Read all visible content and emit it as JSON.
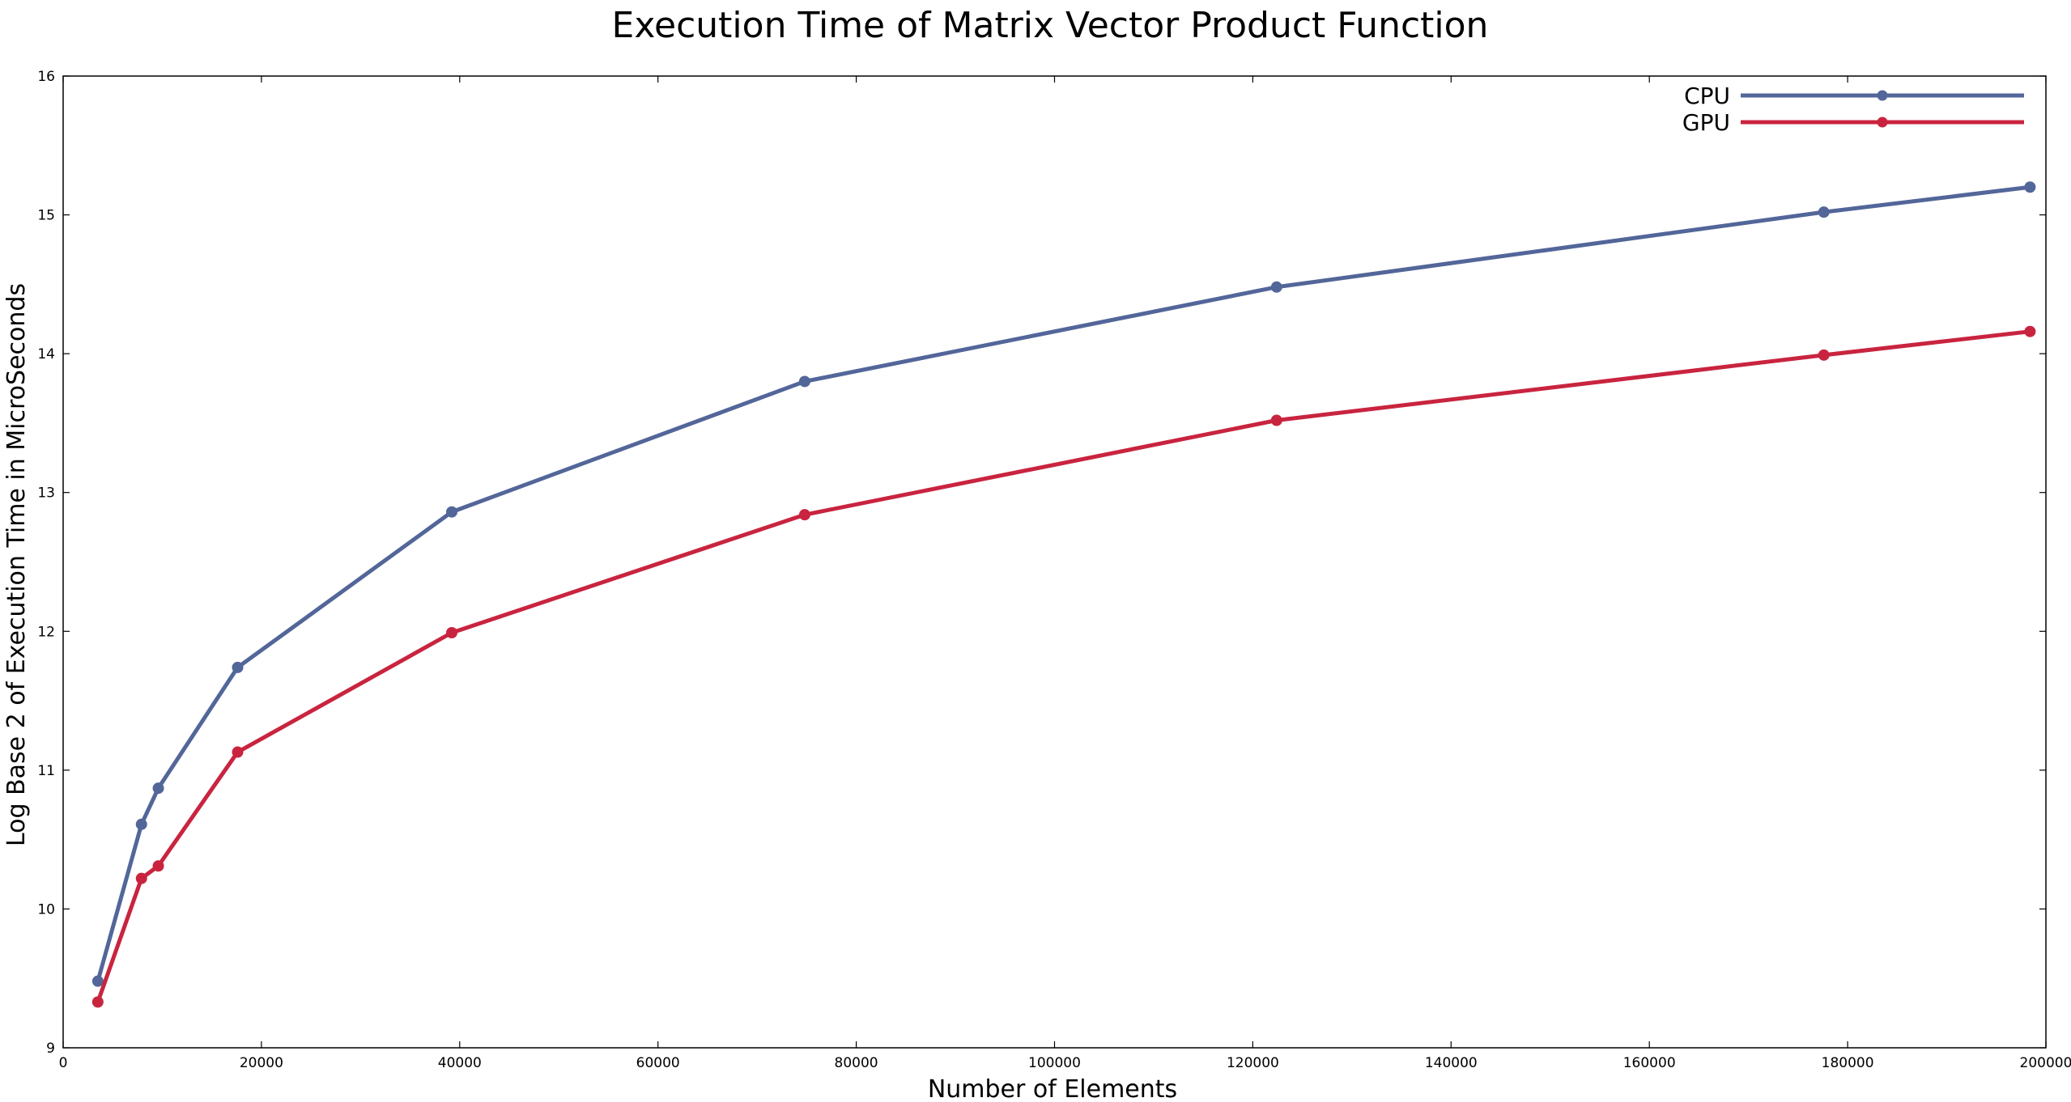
{
  "chart_data": {
    "type": "line",
    "title": "Execution Time of Matrix Vector Product Function",
    "xlabel": "Number of Elements",
    "ylabel": "Log Base 2 of Execution Time in MicroSeconds",
    "xlim": [
      0,
      200000
    ],
    "ylim": [
      9,
      16
    ],
    "xticks": [
      0,
      20000,
      40000,
      60000,
      80000,
      100000,
      120000,
      140000,
      160000,
      180000,
      200000
    ],
    "yticks": [
      9,
      10,
      11,
      12,
      13,
      14,
      15,
      16
    ],
    "xtick_labels": [
      "0",
      "20000",
      "40000",
      "60000",
      "80000",
      "100000",
      "120000",
      "140000",
      "160000",
      "180000",
      "200000"
    ],
    "ytick_labels": [
      "9",
      "10",
      "11",
      "12",
      "13",
      "14",
      "15",
      "16"
    ],
    "grid": false,
    "legend_position": "top-right",
    "x": [
      3500,
      7900,
      9600,
      17600,
      39200,
      74800,
      122400,
      177600,
      198400
    ],
    "series": [
      {
        "name": "CPU",
        "color": "#536699",
        "marker": "circle",
        "values": [
          9.48,
          10.61,
          10.87,
          11.74,
          12.86,
          13.8,
          14.48,
          15.02,
          15.2
        ]
      },
      {
        "name": "GPU",
        "color": "#c9243f",
        "marker": "circle",
        "values": [
          9.33,
          10.22,
          10.31,
          11.13,
          11.99,
          12.84,
          13.52,
          13.99,
          14.16
        ]
      }
    ]
  }
}
